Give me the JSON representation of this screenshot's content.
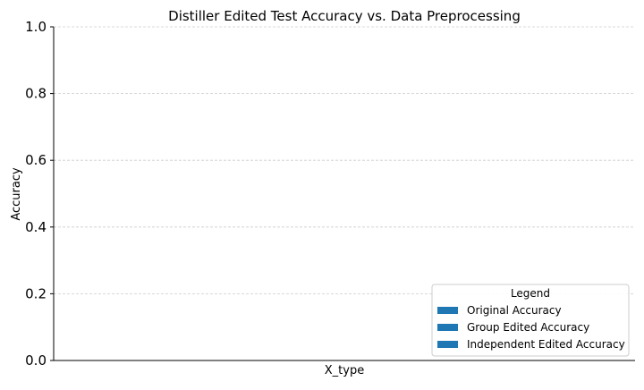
{
  "chart_data": {
    "type": "bar",
    "title": "Distiller Edited Test Accuracy vs. Data Preprocessing",
    "xlabel": "X_type",
    "ylabel": "Accuracy",
    "ylim": [
      0,
      1
    ],
    "yticks": [
      {
        "value": 0.0,
        "label": "0.0"
      },
      {
        "value": 0.2,
        "label": "0.2"
      },
      {
        "value": 0.4,
        "label": "0.4"
      },
      {
        "value": 0.6,
        "label": "0.6"
      },
      {
        "value": 0.8,
        "label": "0.8"
      },
      {
        "value": 1.0,
        "label": "1.0"
      }
    ],
    "categories": [],
    "grid": {
      "y": true,
      "x": false,
      "style": "dashed"
    },
    "legend": {
      "title": "Legend",
      "placement": "lower-right",
      "entries": [
        {
          "label": "Original Accuracy",
          "color": "#1f77b4"
        },
        {
          "label": "Group Edited Accuracy",
          "color": "#1f77b4"
        },
        {
          "label": "Independent Edited Accuracy",
          "color": "#1f77b4"
        }
      ]
    },
    "series": [
      {
        "name": "Original Accuracy",
        "color": "#1f77b4",
        "values": []
      },
      {
        "name": "Group Edited Accuracy",
        "color": "#1f77b4",
        "values": []
      },
      {
        "name": "Independent Edited Accuracy",
        "color": "#1f77b4",
        "values": []
      }
    ],
    "colors": {
      "grid": "#cccccc",
      "axis": "#000000",
      "legend_border": "#cccccc"
    }
  }
}
